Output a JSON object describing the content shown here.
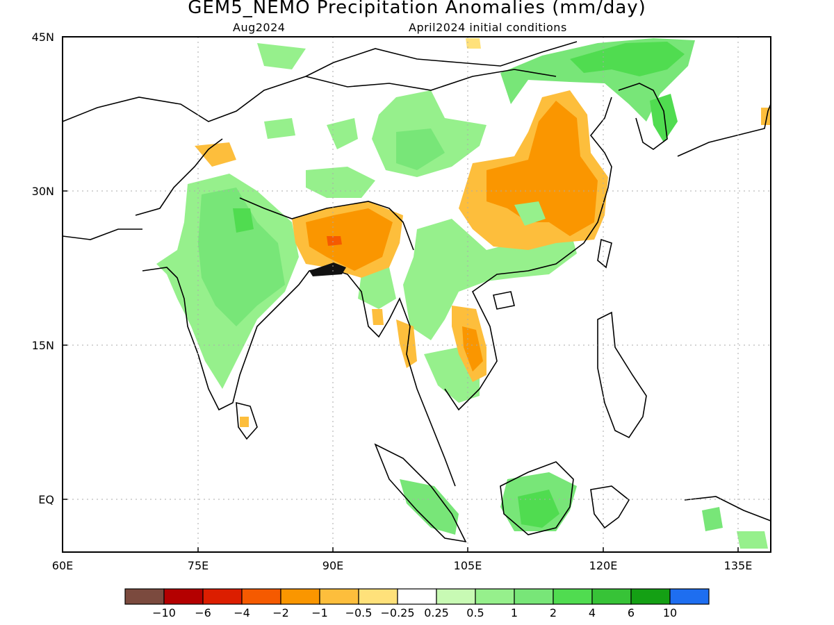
{
  "title": "GEM5_NEMO Precipitation Anomalies (mm/day)",
  "subtitle_left": "Aug2024",
  "subtitle_right": "April2024 initial conditions",
  "x_ticks": [
    "60E",
    "75E",
    "90E",
    "105E",
    "120E",
    "135E"
  ],
  "y_ticks": [
    "45N",
    "30N",
    "15N",
    "EQ"
  ],
  "legend": {
    "colors": [
      "#7b4a3e",
      "#b40000",
      "#dc1e00",
      "#f55a00",
      "#fa9600",
      "#fdbe3c",
      "#ffe17a",
      "#ffffff",
      "#c8fab4",
      "#96f08c",
      "#78e678",
      "#50dc50",
      "#37c337",
      "#14a014",
      "#1e6ef0"
    ],
    "labels": [
      "−10",
      "−6",
      "−4",
      "−2",
      "−1",
      "−0.5",
      "−0.25",
      "0.25",
      "0.5",
      "1",
      "2",
      "4",
      "6",
      "10"
    ]
  }
}
